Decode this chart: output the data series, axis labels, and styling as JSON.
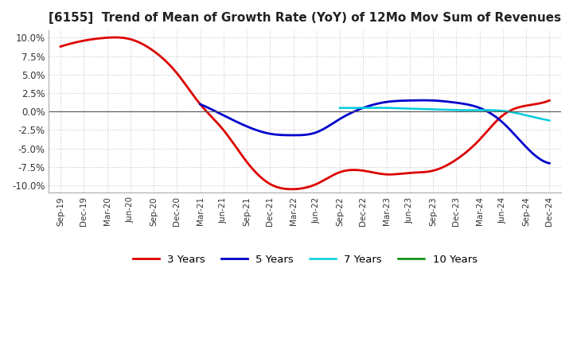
{
  "title": "[6155]  Trend of Mean of Growth Rate (YoY) of 12Mo Mov Sum of Revenues",
  "title_fontsize": 11,
  "ylim": [
    -0.11,
    0.11
  ],
  "yticks": [
    -0.1,
    -0.075,
    -0.05,
    -0.025,
    0.0,
    0.025,
    0.05,
    0.075,
    0.1
  ],
  "background_color": "#ffffff",
  "grid_color": "#c8c8c8",
  "x_labels": [
    "Sep-19",
    "Dec-19",
    "Mar-20",
    "Jun-20",
    "Sep-20",
    "Dec-20",
    "Mar-21",
    "Jun-21",
    "Sep-21",
    "Dec-21",
    "Mar-22",
    "Jun-22",
    "Sep-22",
    "Dec-22",
    "Mar-23",
    "Jun-23",
    "Sep-23",
    "Dec-23",
    "Mar-24",
    "Jun-24",
    "Sep-24",
    "Dec-24"
  ],
  "legend_labels": [
    "3 Years",
    "5 Years",
    "7 Years",
    "10 Years"
  ],
  "series": {
    "3y": {
      "color": "#dd0000",
      "lw": 2.0,
      "values": [
        0.088,
        0.096,
        0.1,
        0.098,
        0.082,
        0.052,
        0.01,
        -0.025,
        -0.068,
        -0.098,
        -0.105,
        -0.098,
        -0.082,
        -0.08,
        -0.085,
        -0.083,
        -0.08,
        -0.065,
        -0.038,
        -0.005,
        0.008,
        0.015
      ]
    },
    "5y": {
      "color": "#0000cc",
      "lw": 2.0,
      "values": [
        null,
        null,
        null,
        null,
        null,
        null,
        0.01,
        -0.005,
        -0.02,
        -0.03,
        -0.032,
        -0.028,
        -0.01,
        0.005,
        0.013,
        0.015,
        0.015,
        0.012,
        0.005,
        -0.015,
        -0.048,
        -0.07
      ]
    },
    "7y": {
      "color": "#00ccdd",
      "lw": 1.8,
      "values": [
        null,
        null,
        null,
        null,
        null,
        null,
        null,
        null,
        null,
        null,
        null,
        null,
        0.005,
        0.005,
        0.005,
        0.004,
        0.003,
        0.002,
        0.002,
        0.001,
        -0.005,
        -0.012
      ]
    },
    "10y": {
      "color": "#008800",
      "lw": 1.8,
      "values": [
        null,
        null,
        null,
        null,
        null,
        null,
        null,
        null,
        null,
        null,
        null,
        null,
        null,
        null,
        null,
        null,
        null,
        null,
        null,
        null,
        null,
        null
      ]
    }
  }
}
